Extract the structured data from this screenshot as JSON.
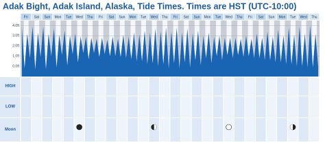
{
  "chart_data": {
    "type": "tide",
    "title": "Adak Bight, Adak Island, Alaska, Tide Times. Times are HST (UTC-10:00)",
    "days": [
      "Fri",
      "Sat",
      "Sun",
      "Mon",
      "Tue",
      "Wed",
      "Thu",
      "Fri",
      "Sat",
      "Sun",
      "Mon",
      "Tue",
      "Wed",
      "Thu",
      "Fri",
      "Sat",
      "Sun",
      "Mon",
      "Tue",
      "Wed",
      "Thu",
      "Fri",
      "Sat",
      "Sun",
      "Mon",
      "Tue",
      "Wed",
      "Thu"
    ],
    "series": [
      {
        "name": "Tide",
        "color": "#1a64b4",
        "values": [
          3.8,
          -0.2,
          3.2,
          0.8,
          3.9,
          -0.3,
          3.3,
          0.9,
          3.9,
          -0.3,
          3.2,
          1.0,
          3.7,
          -0.1,
          3.1,
          1.1,
          3.5,
          0.1,
          3.0,
          1.2,
          3.2,
          0.4,
          2.9,
          1.3,
          2.9,
          0.7,
          2.8,
          1.3,
          2.7,
          0.9,
          2.8,
          1.2,
          2.6,
          1.0,
          2.9,
          1.0,
          2.7,
          0.9,
          3.1,
          0.8,
          2.9,
          0.7,
          3.3,
          0.5,
          3.1,
          0.5,
          3.5,
          0.2,
          3.3,
          0.3,
          3.7,
          0.0,
          3.4,
          0.2,
          3.8,
          -0.2,
          3.4,
          0.3,
          3.8,
          -0.2,
          3.3,
          0.4,
          3.7,
          -0.1,
          3.2,
          0.6,
          3.5,
          0.1,
          3.0,
          0.8,
          3.3,
          0.3,
          2.9,
          1.0,
          3.0,
          0.6,
          2.8,
          1.1,
          2.8,
          0.8,
          2.8,
          1.1,
          2.7,
          0.9,
          3.0,
          1.0,
          2.7,
          0.8,
          3.2,
          0.8,
          2.8,
          0.6,
          3.4,
          0.6,
          2.9,
          0.4,
          3.6,
          0.4,
          3.0,
          0.2,
          3.8,
          0.2,
          3.1,
          0.0,
          3.9,
          0.0,
          3.2,
          -0.1,
          4.0,
          -0.1,
          3.2,
          0.0
        ]
      }
    ],
    "ylim": [
      -1,
      4.5
    ],
    "yticks": [
      {
        "value": 0,
        "label": "0.0ft"
      },
      {
        "value": 1,
        "label": "1.0ft"
      },
      {
        "value": 2,
        "label": "2.0ft"
      },
      {
        "value": 3,
        "label": "3.0ft"
      },
      {
        "value": 4,
        "label": "4.0ft"
      }
    ],
    "grid": true,
    "rows": [
      "HIGH",
      "LOW",
      "Moon"
    ]
  }
}
